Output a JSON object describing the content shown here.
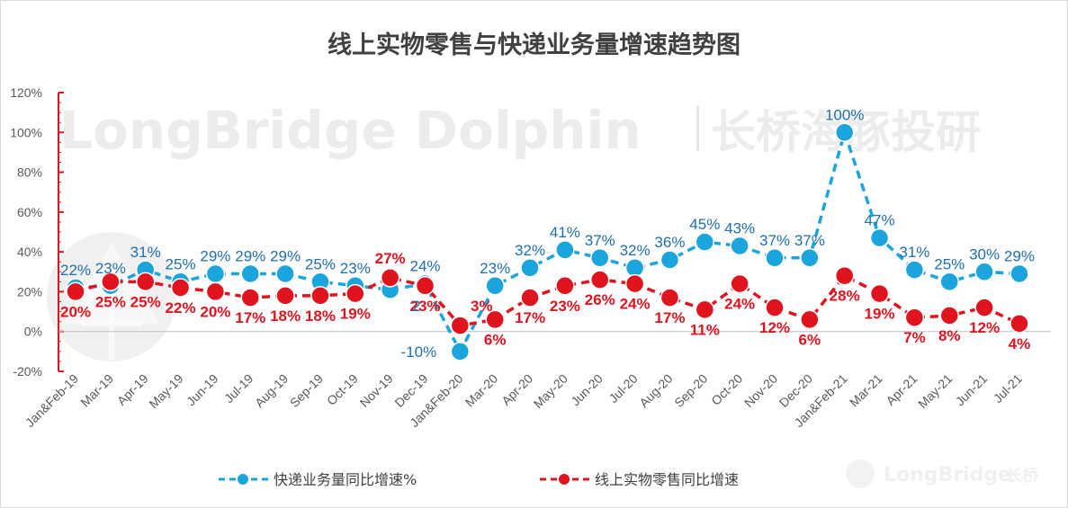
{
  "title": "线上实物零售与快递业务量增速趋势图",
  "watermark": {
    "main_en": "LongBridge Dolphin",
    "main_cn": "长桥海豚投研",
    "corner_en": "LongBridge",
    "corner_cn": "长桥"
  },
  "colors": {
    "express": "#1ca4dc",
    "retail": "#e0141e",
    "express_label": "#1f6fae",
    "axis_red": "#e0141e"
  },
  "chart_data": {
    "type": "line",
    "categories": [
      "Jan&Feb-19",
      "Mar-19",
      "Apr-19",
      "May-19",
      "Jun-19",
      "Jul-19",
      "Aug-19",
      "Sep-19",
      "Oct-19",
      "Nov-19",
      "Dec-19",
      "Jan&Feb-20",
      "Mar-20",
      "Apr-20",
      "May-20",
      "Jun-20",
      "Jul-20",
      "Aug-20",
      "Sep-20",
      "Oct-20",
      "Nov-20",
      "Dec-20",
      "Jan&Feb-21",
      "Mar-21",
      "Apr-21",
      "May-21",
      "Jun-21",
      "Jul-21"
    ],
    "ylim": [
      -20,
      120
    ],
    "yticks": [
      "-20%",
      "0%",
      "20%",
      "40%",
      "60%",
      "80%",
      "100%",
      "120%"
    ],
    "grid": false,
    "legend_position": "bottom",
    "series": [
      {
        "name": "快递业务量同比增速%",
        "values": [
          22,
          23,
          31,
          25,
          29,
          29,
          29,
          25,
          23,
          21,
          24,
          -10,
          23,
          32,
          41,
          37,
          32,
          36,
          45,
          43,
          37,
          37,
          100,
          47,
          31,
          25,
          30,
          29
        ],
        "labels": [
          "22%",
          "23%",
          "31%",
          "25%",
          "29%",
          "29%",
          "29%",
          "25%",
          "23%",
          "",
          "24%",
          "-10%",
          "23%",
          "32%",
          "41%",
          "37%",
          "32%",
          "36%",
          "45%",
          "43%",
          "37%",
          "37%",
          "100%",
          "47%",
          "31%",
          "25%",
          "30%",
          "29%"
        ]
      },
      {
        "name": "线上实物零售同比增速",
        "values": [
          20,
          25,
          25,
          22,
          20,
          17,
          18,
          18,
          19,
          27,
          23,
          3,
          6,
          17,
          23,
          26,
          24,
          17,
          11,
          24,
          12,
          6,
          28,
          19,
          7,
          8,
          12,
          4
        ],
        "labels": [
          "20%",
          "25%",
          "25%",
          "22%",
          "20%",
          "17%",
          "18%",
          "18%",
          "19%",
          "27%",
          "23%",
          "3%",
          "6%",
          "17%",
          "23%",
          "26%",
          "24%",
          "17%",
          "11%",
          "24%",
          "12%",
          "6%",
          "28%",
          "19%",
          "7%",
          "8%",
          "12%",
          "4%"
        ]
      }
    ],
    "annotations": [
      "2"
    ]
  }
}
